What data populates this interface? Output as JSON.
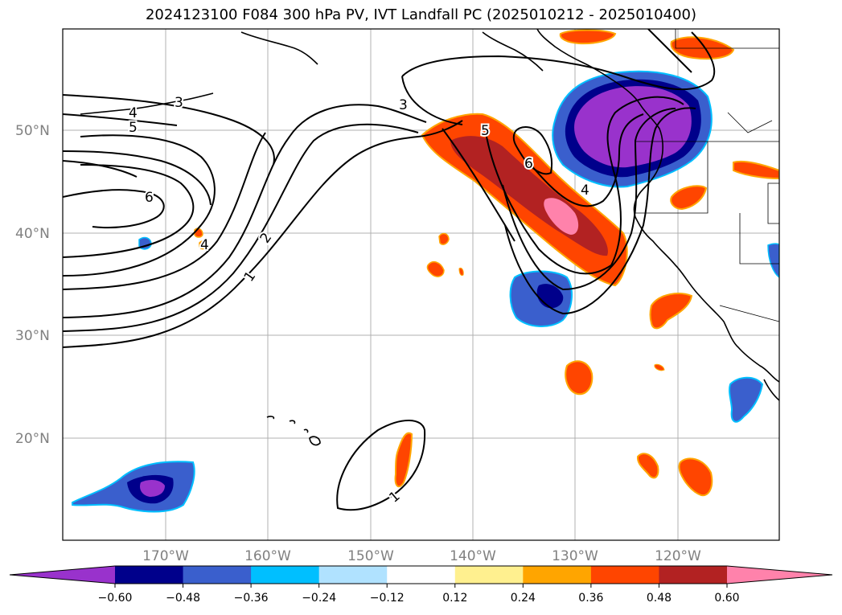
{
  "title": "2024123100 F084 300 hPa PV, IVT Landfall PC (2025010212 - 2025010400)",
  "latitude_labels": [
    "50°N",
    "40°N",
    "30°N",
    "20°N"
  ],
  "longitude_labels": [
    "170°W",
    "160°W",
    "150°W",
    "140°W",
    "130°W",
    "120°W"
  ],
  "colorbar": {
    "tick_labels": [
      "−0.60",
      "−0.48",
      "−0.36",
      "−0.24",
      "−0.12",
      "0.12",
      "0.24",
      "0.36",
      "0.48",
      "0.60"
    ],
    "colors": [
      "#9932cc",
      "#00008b",
      "#3a5fcd",
      "#00bfff",
      "#b0e2ff",
      "#ffffff",
      "#fff08f",
      "#ffa500",
      "#ff4500",
      "#b22222",
      "#ff82ab"
    ]
  },
  "contour_labels": [
    "1",
    "2",
    "3",
    "4",
    "5",
    "6",
    "3",
    "4",
    "5",
    "6",
    "4",
    "1"
  ]
}
